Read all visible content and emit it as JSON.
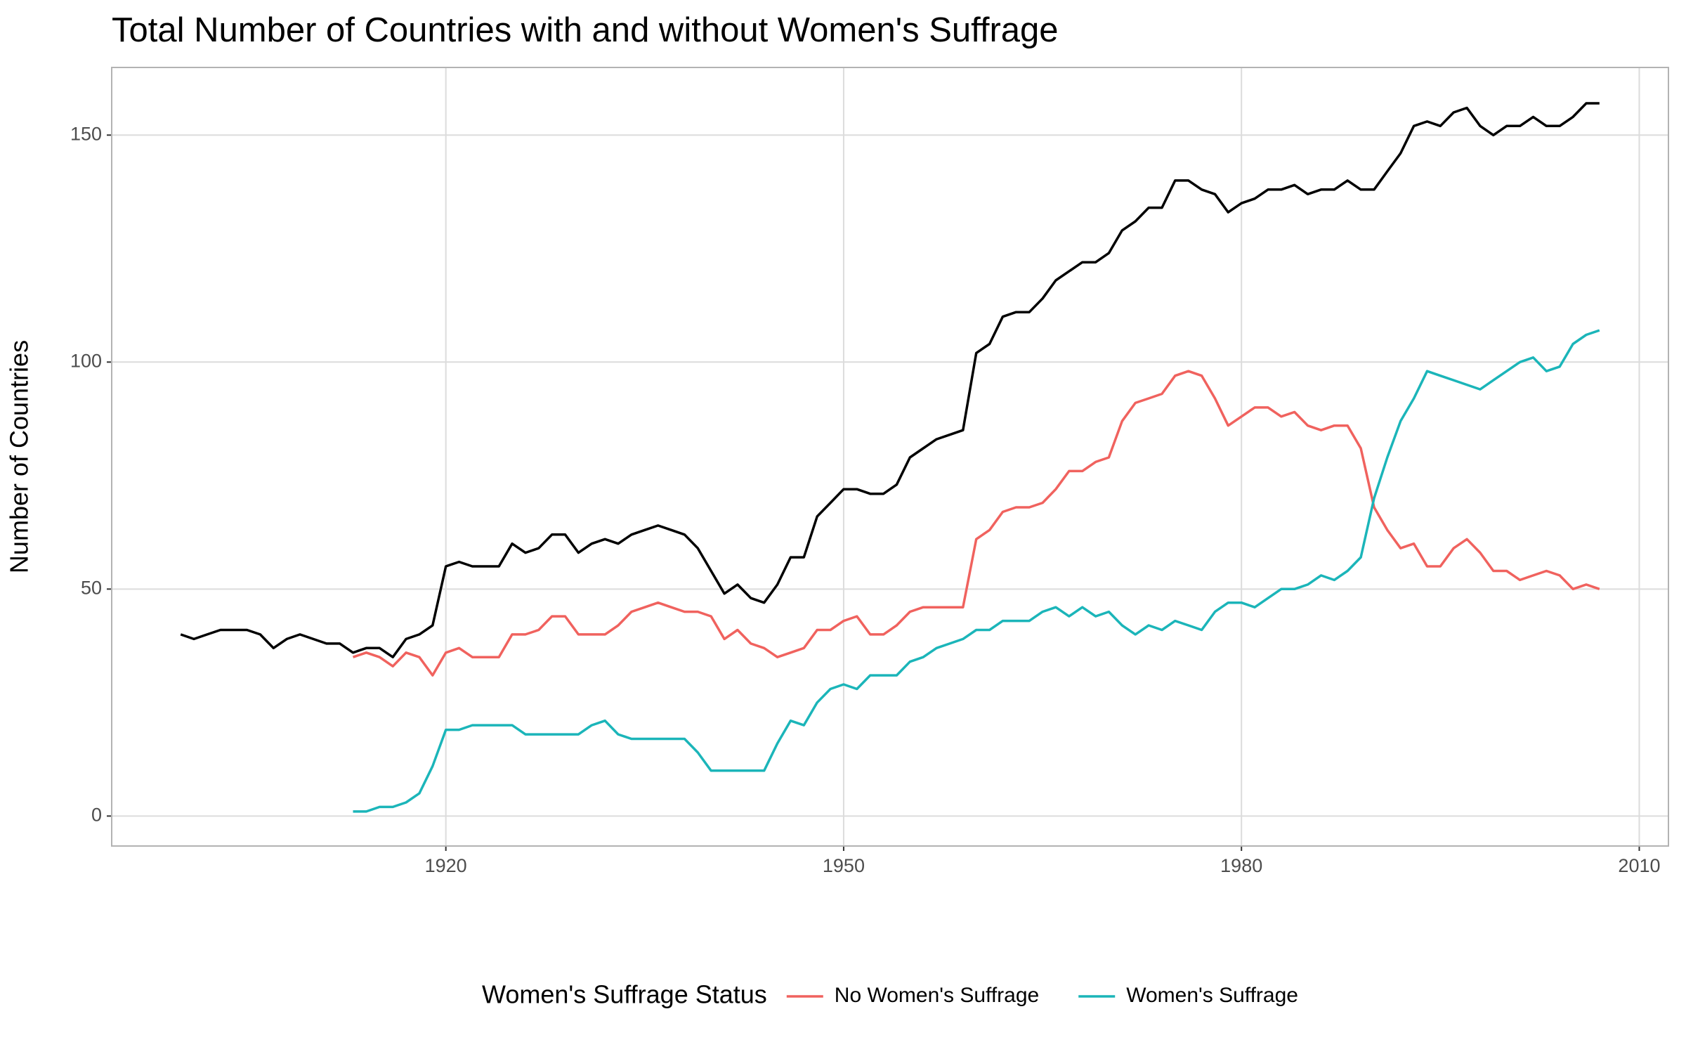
{
  "chart_data": {
    "type": "line",
    "title": "Total Number of Countries with and without Women's Suffrage",
    "y_label": "Number of Countries",
    "legend_title": "Women's Suffrage Status",
    "legend_position": "bottom",
    "grid": true,
    "xlim": [
      1894.8,
      2012.2
    ],
    "xticks": [
      1920,
      1950,
      1980,
      2010
    ],
    "ylim": [
      -6.6,
      164.9
    ],
    "yticks": [
      0,
      50,
      100,
      150
    ],
    "x": [
      1900,
      1901,
      1902,
      1903,
      1904,
      1905,
      1906,
      1907,
      1908,
      1909,
      1910,
      1911,
      1912,
      1913,
      1914,
      1915,
      1916,
      1917,
      1918,
      1919,
      1920,
      1921,
      1922,
      1923,
      1924,
      1925,
      1926,
      1927,
      1928,
      1929,
      1930,
      1931,
      1932,
      1933,
      1934,
      1935,
      1936,
      1937,
      1938,
      1939,
      1940,
      1941,
      1942,
      1943,
      1944,
      1945,
      1946,
      1947,
      1948,
      1949,
      1950,
      1951,
      1952,
      1953,
      1954,
      1955,
      1956,
      1957,
      1958,
      1959,
      1960,
      1961,
      1962,
      1963,
      1964,
      1965,
      1966,
      1967,
      1968,
      1969,
      1970,
      1971,
      1972,
      1973,
      1974,
      1975,
      1976,
      1977,
      1978,
      1979,
      1980,
      1981,
      1982,
      1983,
      1984,
      1985,
      1986,
      1987,
      1988,
      1989,
      1990,
      1991,
      1992,
      1993,
      1994,
      1995,
      1996,
      1997,
      1998,
      1999,
      2000,
      2001,
      2002,
      2003,
      2004,
      2005,
      2006,
      2007
    ],
    "series": [
      {
        "color": "#000000",
        "values": [
          40,
          39,
          40,
          41,
          41,
          41,
          40,
          37,
          39,
          40,
          39,
          38,
          38,
          36,
          37,
          37,
          35,
          39,
          40,
          42,
          55,
          56,
          55,
          55,
          55,
          60,
          58,
          59,
          62,
          62,
          58,
          60,
          61,
          60,
          62,
          63,
          64,
          63,
          62,
          59,
          54,
          49,
          51,
          48,
          47,
          51,
          57,
          57,
          66,
          69,
          72,
          72,
          71,
          71,
          73,
          79,
          81,
          83,
          84,
          85,
          102,
          104,
          110,
          111,
          111,
          114,
          118,
          120,
          122,
          122,
          124,
          129,
          131,
          134,
          134,
          140,
          140,
          138,
          137,
          133,
          135,
          136,
          138,
          138,
          139,
          137,
          138,
          138,
          140,
          138,
          138,
          142,
          146,
          152,
          153,
          152,
          155,
          156,
          152,
          150,
          152,
          152,
          154,
          152,
          152,
          154,
          157,
          157
        ]
      },
      {
        "name": "No Women's Suffrage",
        "color": "#f0625e",
        "values": [
          null,
          null,
          null,
          null,
          null,
          null,
          null,
          null,
          null,
          null,
          null,
          null,
          null,
          35,
          36,
          35,
          33,
          36,
          35,
          31,
          36,
          37,
          35,
          35,
          35,
          40,
          40,
          41,
          44,
          44,
          40,
          40,
          40,
          42,
          45,
          46,
          47,
          46,
          45,
          45,
          44,
          39,
          41,
          38,
          37,
          35,
          36,
          37,
          41,
          41,
          43,
          44,
          40,
          40,
          42,
          45,
          46,
          46,
          46,
          46,
          61,
          63,
          67,
          68,
          68,
          69,
          72,
          76,
          76,
          78,
          79,
          87,
          91,
          92,
          93,
          97,
          98,
          97,
          92,
          86,
          88,
          90,
          90,
          88,
          89,
          86,
          85,
          86,
          86,
          81,
          68,
          63,
          59,
          60,
          55,
          55,
          59,
          61,
          58,
          54,
          54,
          52,
          53,
          54,
          53,
          50,
          51,
          50
        ]
      },
      {
        "name": "Women's Suffrage",
        "color": "#1bb5b9",
        "values": [
          null,
          null,
          null,
          null,
          null,
          null,
          null,
          null,
          null,
          null,
          null,
          null,
          null,
          1,
          1,
          2,
          2,
          3,
          5,
          11,
          19,
          19,
          20,
          20,
          20,
          20,
          18,
          18,
          18,
          18,
          18,
          20,
          21,
          18,
          17,
          17,
          17,
          17,
          17,
          14,
          10,
          10,
          10,
          10,
          10,
          16,
          21,
          20,
          25,
          28,
          29,
          28,
          31,
          31,
          31,
          34,
          35,
          37,
          38,
          39,
          41,
          41,
          43,
          43,
          43,
          45,
          46,
          44,
          46,
          44,
          45,
          42,
          40,
          42,
          41,
          43,
          42,
          41,
          45,
          47,
          47,
          46,
          48,
          50,
          50,
          51,
          53,
          52,
          54,
          57,
          70,
          79,
          87,
          92,
          98,
          97,
          96,
          95,
          94,
          96,
          98,
          100,
          101,
          98,
          99,
          104,
          106,
          107
        ]
      }
    ]
  }
}
